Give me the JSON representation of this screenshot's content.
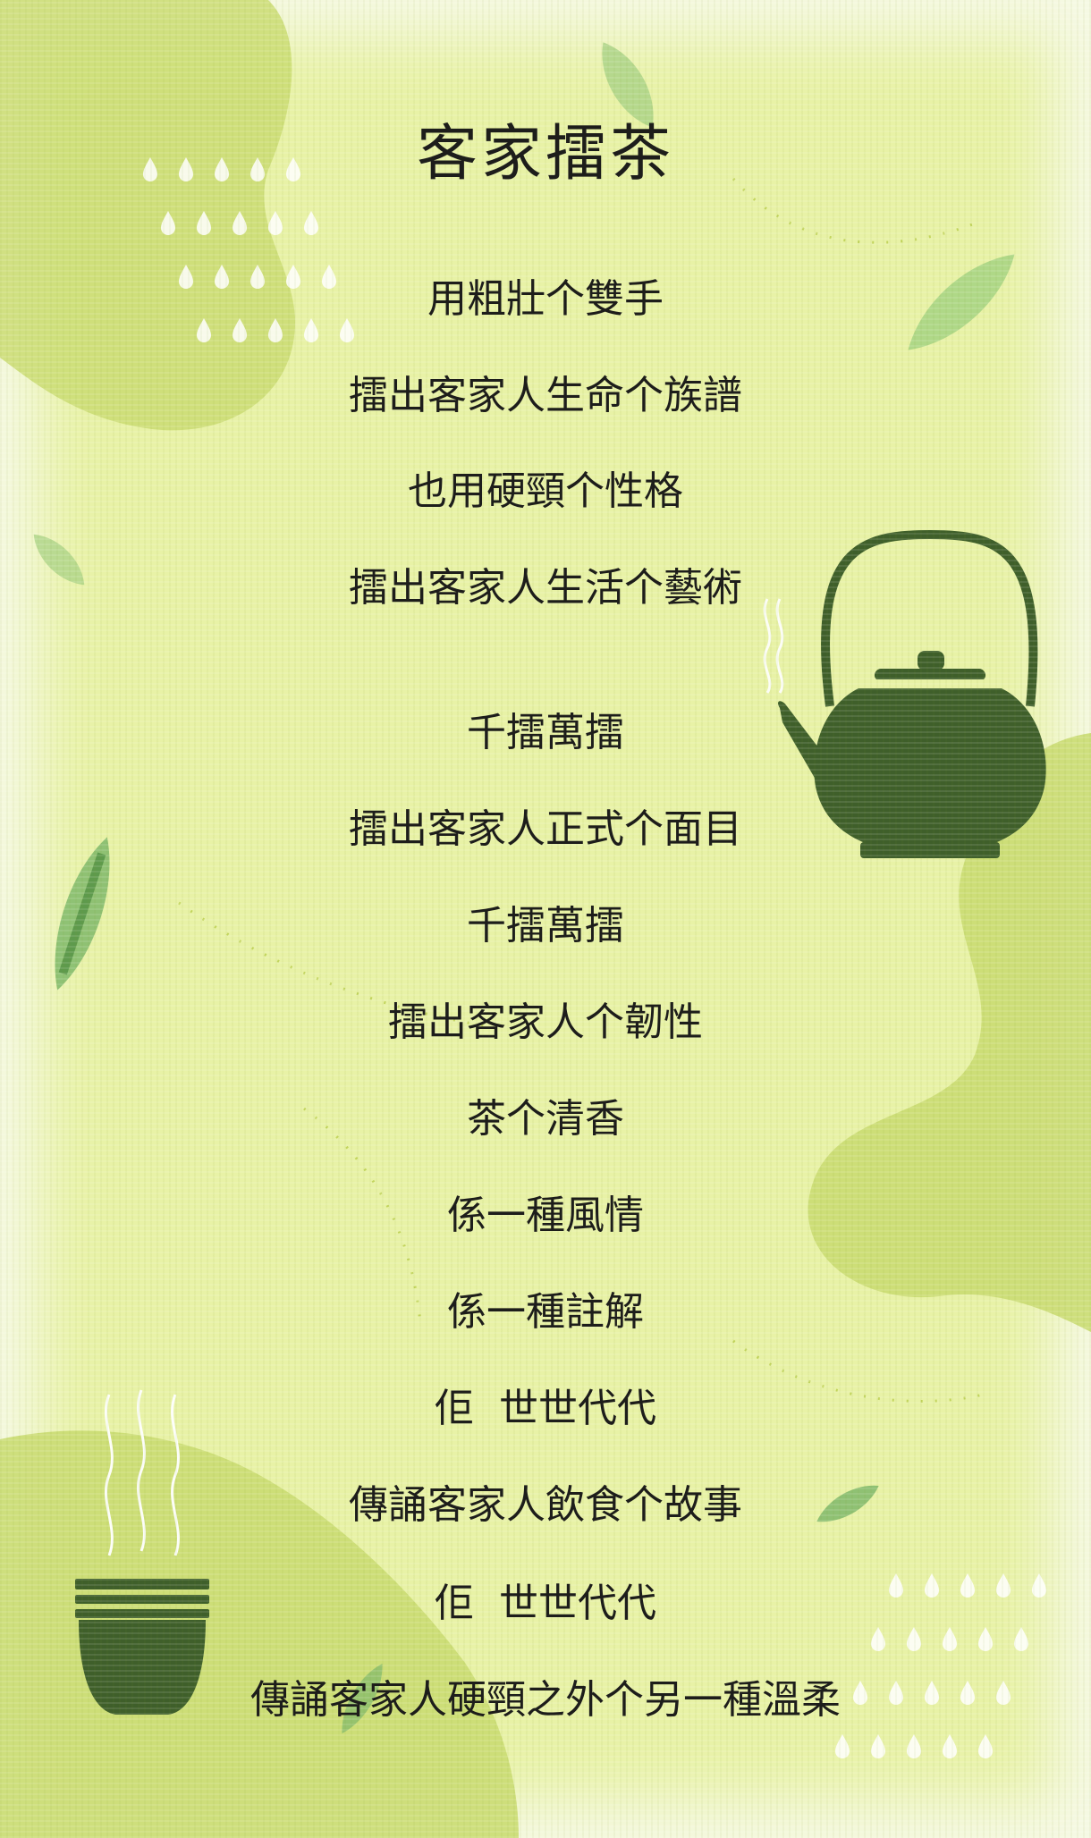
{
  "title": "客家擂茶",
  "lines": [
    "用粗壯个雙手",
    "擂出客家人生命个族譜",
    "也用硬頸个性格",
    "擂出客家人生活个藝術",
    "千擂萬擂",
    "擂出客家人正式个面目",
    "千擂萬擂",
    "擂出客家人个韌性",
    "茶个清香",
    "係一種風情",
    "係一種註解",
    "佢  世世代代",
    "傳誦客家人飲食个故事",
    "佢  世世代代",
    "傳誦客家人硬頸之外个另一種溫柔"
  ],
  "icons": [
    "teapot-icon",
    "teacup-icon",
    "leaf-icon",
    "raindrop-icon",
    "steam-icon"
  ],
  "colors": {
    "background": "#e8f2a6",
    "blob": "#cadc72",
    "dark_green": "#3f5f2a",
    "leaf": "#88c46a",
    "text": "#1d1d1b"
  }
}
